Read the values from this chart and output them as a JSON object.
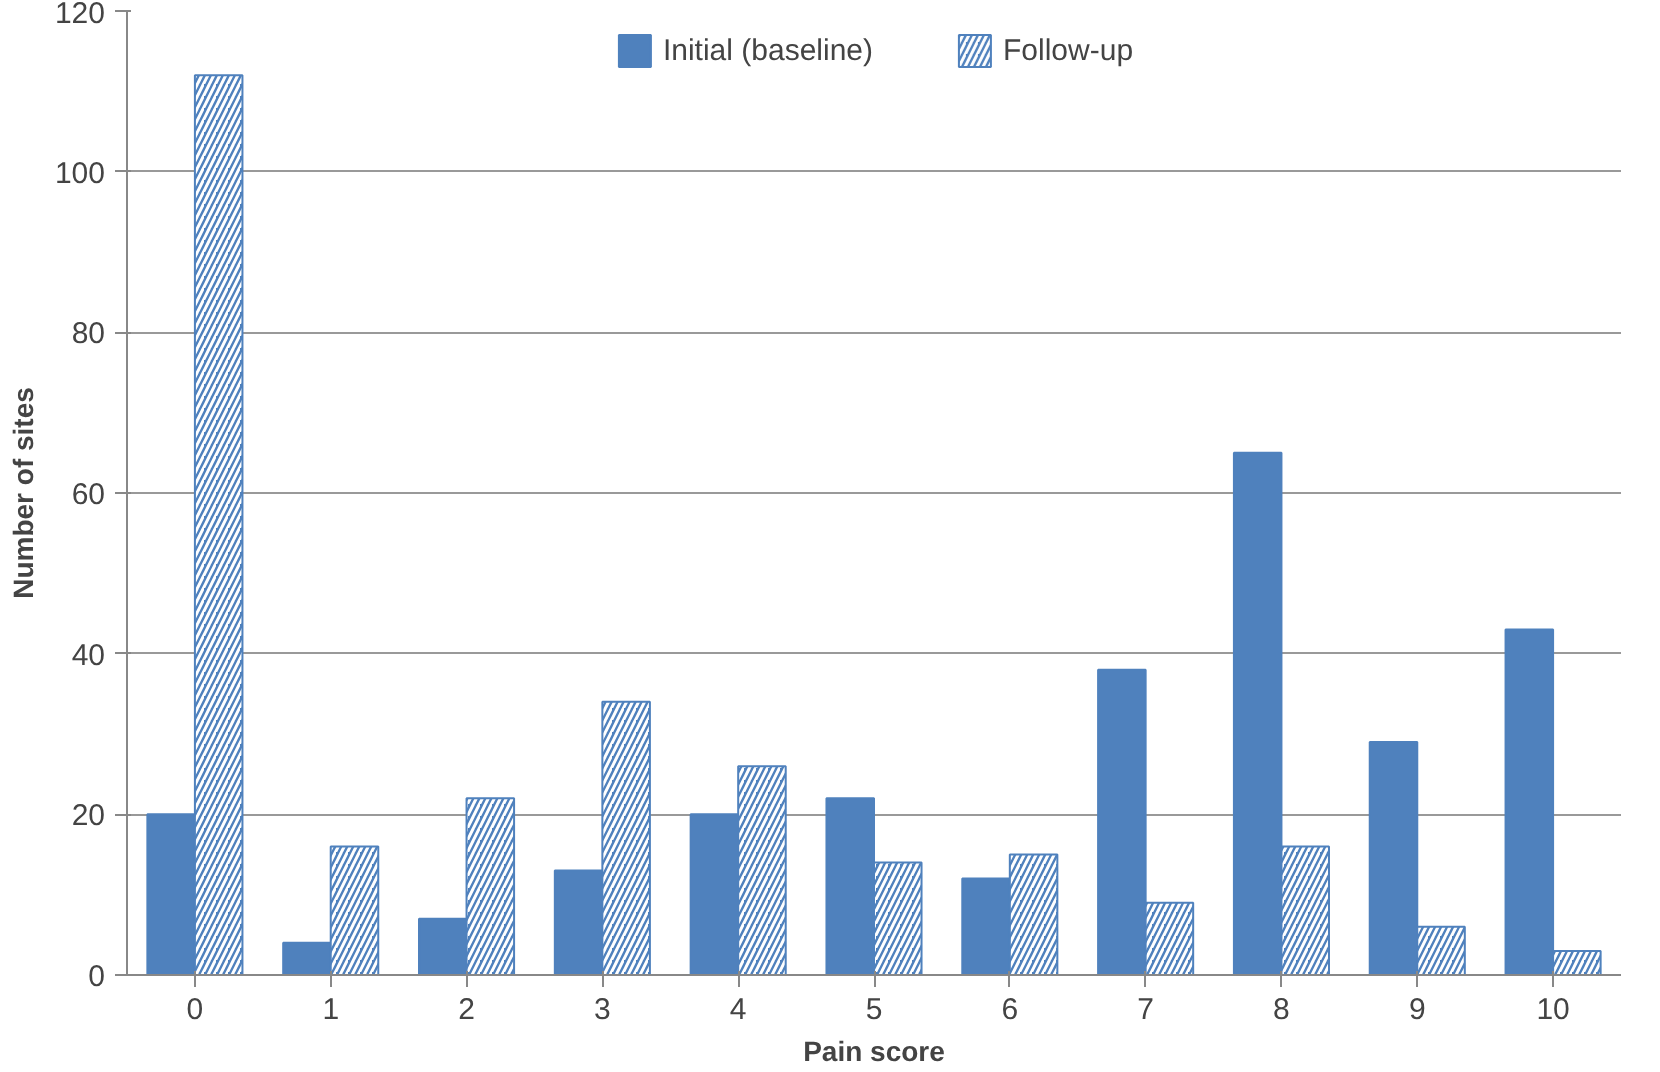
{
  "chart_data": {
    "type": "bar",
    "xlabel": "Pain score",
    "ylabel": "Number of sites",
    "categories": [
      "0",
      "1",
      "2",
      "3",
      "4",
      "5",
      "6",
      "7",
      "8",
      "9",
      "10"
    ],
    "series": [
      {
        "name": "Initial (baseline)",
        "color": "#4f81bd",
        "values": [
          20,
          4,
          7,
          13,
          20,
          22,
          12,
          38,
          65,
          29,
          43
        ]
      },
      {
        "name": "Follow-up",
        "color": "#4f81bd",
        "values": [
          112,
          16,
          22,
          34,
          26,
          14,
          15,
          9,
          16,
          6,
          3
        ]
      }
    ],
    "ylim": [
      0,
      120
    ],
    "yticks": [
      0,
      20,
      40,
      60,
      80,
      100,
      120
    ],
    "grid": "y",
    "legend": "top"
  }
}
